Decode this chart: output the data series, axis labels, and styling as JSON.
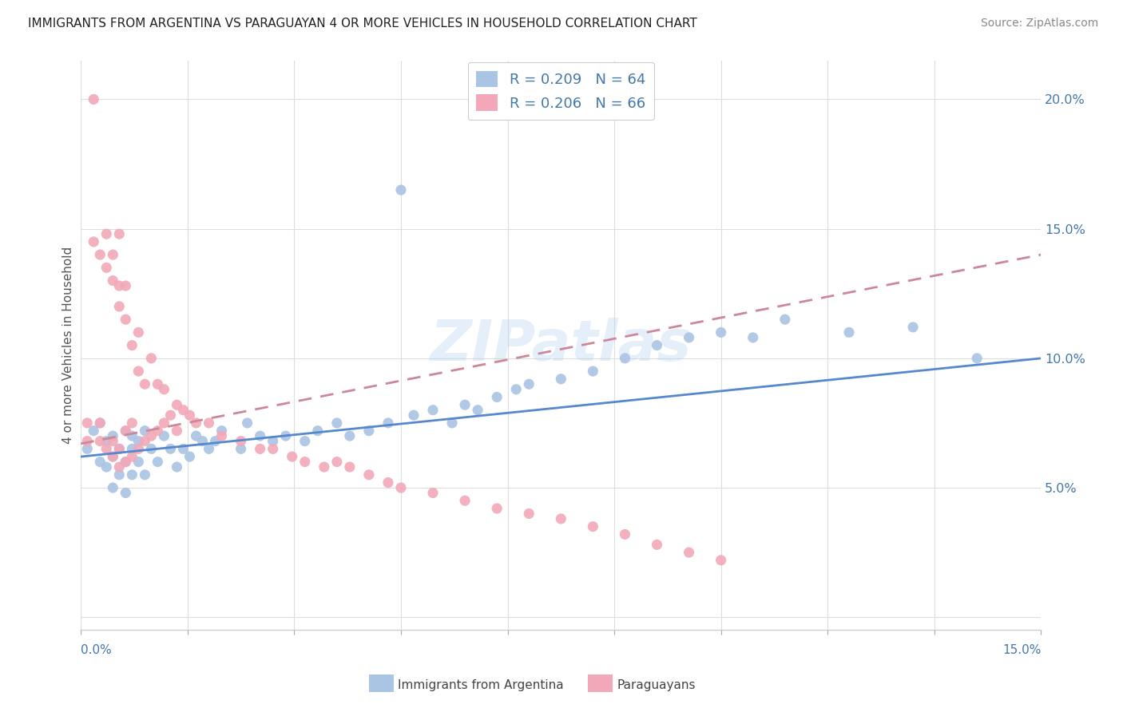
{
  "title": "IMMIGRANTS FROM ARGENTINA VS PARAGUAYAN 4 OR MORE VEHICLES IN HOUSEHOLD CORRELATION CHART",
  "source": "Source: ZipAtlas.com",
  "ylabel": "4 or more Vehicles in Household",
  "right_yticklabels": [
    "",
    "5.0%",
    "10.0%",
    "15.0%",
    "20.0%"
  ],
  "right_yticks": [
    0.0,
    0.05,
    0.1,
    0.15,
    0.2
  ],
  "xlim": [
    0.0,
    0.15
  ],
  "ylim": [
    -0.005,
    0.215
  ],
  "color_blue": "#aac4e4",
  "color_pink": "#f2a8b8",
  "color_blue_line": "#5588cc",
  "color_pink_line": "#cc8899",
  "text_color": "#4477aa",
  "R_arg": 0.209,
  "N_arg": 64,
  "R_par": 0.206,
  "N_par": 66,
  "arg_line_start_y": 0.062,
  "arg_line_end_y": 0.1,
  "par_line_start_y": 0.067,
  "par_line_end_y": 0.14,
  "argentina_x": [
    0.001,
    0.002,
    0.003,
    0.003,
    0.004,
    0.004,
    0.005,
    0.005,
    0.005,
    0.006,
    0.006,
    0.007,
    0.007,
    0.007,
    0.008,
    0.008,
    0.008,
    0.009,
    0.009,
    0.01,
    0.01,
    0.011,
    0.012,
    0.013,
    0.014,
    0.015,
    0.016,
    0.017,
    0.018,
    0.019,
    0.02,
    0.021,
    0.022,
    0.025,
    0.026,
    0.028,
    0.03,
    0.032,
    0.035,
    0.037,
    0.04,
    0.042,
    0.045,
    0.048,
    0.05,
    0.052,
    0.055,
    0.058,
    0.06,
    0.062,
    0.065,
    0.068,
    0.07,
    0.075,
    0.08,
    0.085,
    0.09,
    0.095,
    0.1,
    0.105,
    0.11,
    0.12,
    0.13,
    0.14
  ],
  "argentina_y": [
    0.065,
    0.072,
    0.06,
    0.075,
    0.058,
    0.068,
    0.05,
    0.062,
    0.07,
    0.055,
    0.065,
    0.048,
    0.06,
    0.072,
    0.055,
    0.065,
    0.07,
    0.06,
    0.068,
    0.055,
    0.072,
    0.065,
    0.06,
    0.07,
    0.065,
    0.058,
    0.065,
    0.062,
    0.07,
    0.068,
    0.065,
    0.068,
    0.072,
    0.065,
    0.075,
    0.07,
    0.068,
    0.07,
    0.068,
    0.072,
    0.075,
    0.07,
    0.072,
    0.075,
    0.165,
    0.078,
    0.08,
    0.075,
    0.082,
    0.08,
    0.085,
    0.088,
    0.09,
    0.092,
    0.095,
    0.1,
    0.105,
    0.108,
    0.11,
    0.108,
    0.115,
    0.11,
    0.112,
    0.1
  ],
  "paraguay_x": [
    0.001,
    0.001,
    0.002,
    0.002,
    0.003,
    0.003,
    0.003,
    0.004,
    0.004,
    0.004,
    0.005,
    0.005,
    0.005,
    0.005,
    0.006,
    0.006,
    0.006,
    0.006,
    0.006,
    0.007,
    0.007,
    0.007,
    0.007,
    0.008,
    0.008,
    0.008,
    0.009,
    0.009,
    0.009,
    0.01,
    0.01,
    0.011,
    0.011,
    0.012,
    0.012,
    0.013,
    0.013,
    0.014,
    0.015,
    0.015,
    0.016,
    0.017,
    0.018,
    0.02,
    0.022,
    0.025,
    0.028,
    0.03,
    0.033,
    0.035,
    0.038,
    0.04,
    0.042,
    0.045,
    0.048,
    0.05,
    0.055,
    0.06,
    0.065,
    0.07,
    0.075,
    0.08,
    0.085,
    0.09,
    0.095,
    0.1
  ],
  "paraguay_y": [
    0.068,
    0.075,
    0.145,
    0.2,
    0.068,
    0.075,
    0.14,
    0.065,
    0.135,
    0.148,
    0.062,
    0.068,
    0.13,
    0.14,
    0.058,
    0.065,
    0.12,
    0.128,
    0.148,
    0.06,
    0.072,
    0.115,
    0.128,
    0.062,
    0.075,
    0.105,
    0.065,
    0.095,
    0.11,
    0.068,
    0.09,
    0.07,
    0.1,
    0.072,
    0.09,
    0.075,
    0.088,
    0.078,
    0.072,
    0.082,
    0.08,
    0.078,
    0.075,
    0.075,
    0.07,
    0.068,
    0.065,
    0.065,
    0.062,
    0.06,
    0.058,
    0.06,
    0.058,
    0.055,
    0.052,
    0.05,
    0.048,
    0.045,
    0.042,
    0.04,
    0.038,
    0.035,
    0.032,
    0.028,
    0.025,
    0.022
  ]
}
